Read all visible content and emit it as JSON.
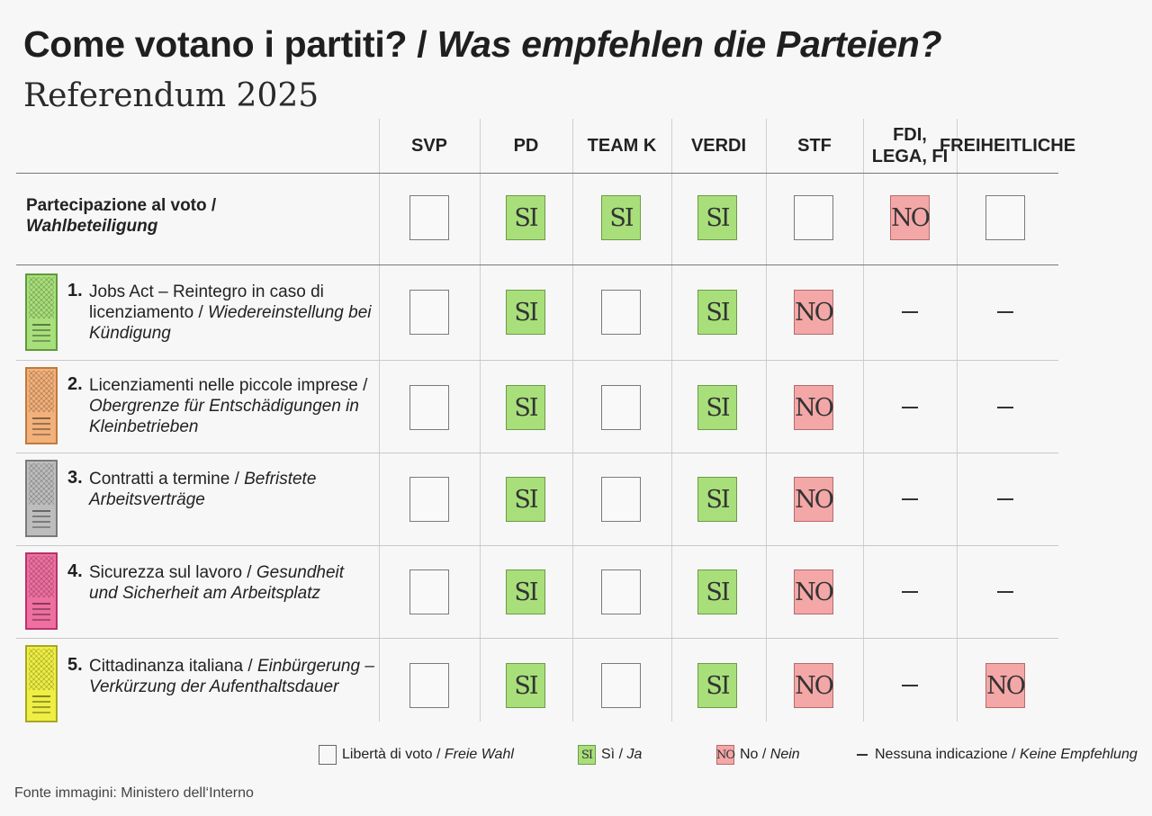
{
  "title": {
    "main": "Come votano i partiti? / ",
    "italic": "Was empfehlen die Parteien?"
  },
  "subtitle": "Referendum 2025",
  "parties": [
    "SVP",
    "PD",
    "TEAM K",
    "VERDI",
    "STF",
    "FDI,\nLEGA, FI",
    "FREIHEITLICHE"
  ],
  "participation": {
    "label": "Partecipazione al voto /",
    "label_italic": "Wahlbeteiligung",
    "values": [
      "free",
      "si",
      "si",
      "si",
      "free",
      "no",
      "free"
    ]
  },
  "questions": [
    {
      "num": "1.",
      "text": "Jobs Act – Reintegro in caso di licenziamento / ",
      "text_italic": "Wiedereinstellung bei Kündigung",
      "ballot_color": "#a8df7a",
      "ballot_border": "#5f9a3a",
      "values": [
        "free",
        "si",
        "free",
        "si",
        "no",
        "none",
        "none"
      ]
    },
    {
      "num": "2.",
      "text": "Licenziamenti nelle piccole imprese / ",
      "text_italic": "Obergrenze für Entschädigungen in Kleinbetrieben",
      "ballot_color": "#f2b07a",
      "ballot_border": "#c07a3a",
      "values": [
        "free",
        "si",
        "free",
        "si",
        "no",
        "none",
        "none"
      ]
    },
    {
      "num": "3.",
      "text": "Contratti a termine / ",
      "text_italic": "Befristete Arbeitsverträge",
      "ballot_color": "#bdbdbd",
      "ballot_border": "#7a7a7a",
      "values": [
        "free",
        "si",
        "free",
        "si",
        "no",
        "none",
        "none"
      ]
    },
    {
      "num": "4.",
      "text": "Sicurezza sul lavoro / ",
      "text_italic": "Gesundheit und Sicherheit am Arbeitsplatz",
      "ballot_color": "#ee6fa0",
      "ballot_border": "#b8336a",
      "values": [
        "free",
        "si",
        "free",
        "si",
        "no",
        "none",
        "none"
      ]
    },
    {
      "num": "5.",
      "text": "Cittadinanza italiana / ",
      "text_italic": "Einbürgerung – Verkürzung der Aufenthaltsdauer",
      "ballot_color": "#eeee44",
      "ballot_border": "#a8a822",
      "values": [
        "free",
        "si",
        "free",
        "si",
        "no",
        "none",
        "no"
      ]
    }
  ],
  "symbols": {
    "si": "SI",
    "no": "NO"
  },
  "legend": [
    {
      "type": "free",
      "label": "Libertà di voto / ",
      "label_italic": "Freie Wahl"
    },
    {
      "type": "si",
      "label": "Sì / ",
      "label_italic": "Ja"
    },
    {
      "type": "no",
      "label": "No / ",
      "label_italic": "Nein"
    },
    {
      "type": "none",
      "label": "Nessuna indicazione / ",
      "label_italic": "Keine Empfehlung"
    }
  ],
  "source": "Fonte immagini: Ministero dell‘Interno"
}
